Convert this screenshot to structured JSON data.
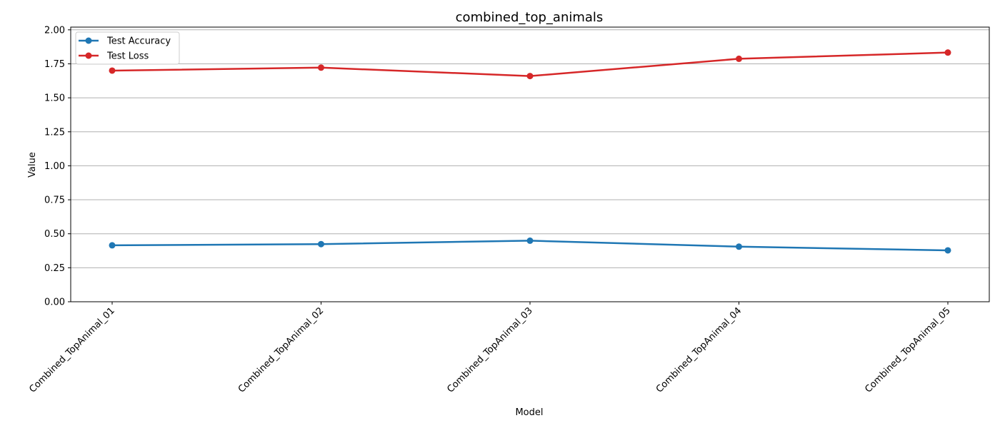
{
  "chart_data": {
    "type": "line",
    "title": "combined_top_animals",
    "xlabel": "Model",
    "ylabel": "Value",
    "categories": [
      "Combined_TopAnimal_01",
      "Combined_TopAnimal_02",
      "Combined_TopAnimal_03",
      "Combined_TopAnimal_04",
      "Combined_TopAnimal_05"
    ],
    "series": [
      {
        "name": "Test Accuracy",
        "color": "#1f77b4",
        "values": [
          0.415,
          0.424,
          0.449,
          0.405,
          0.378
        ]
      },
      {
        "name": "Test Loss",
        "color": "#d62728",
        "values": [
          1.7,
          1.722,
          1.66,
          1.787,
          1.833
        ]
      }
    ],
    "ylim": [
      0,
      2.02
    ],
    "yticks": [
      "0.00",
      "0.25",
      "0.50",
      "0.75",
      "1.00",
      "1.25",
      "1.50",
      "1.75",
      "2.00"
    ],
    "grid": "horizontal",
    "legend": "upper-left"
  }
}
